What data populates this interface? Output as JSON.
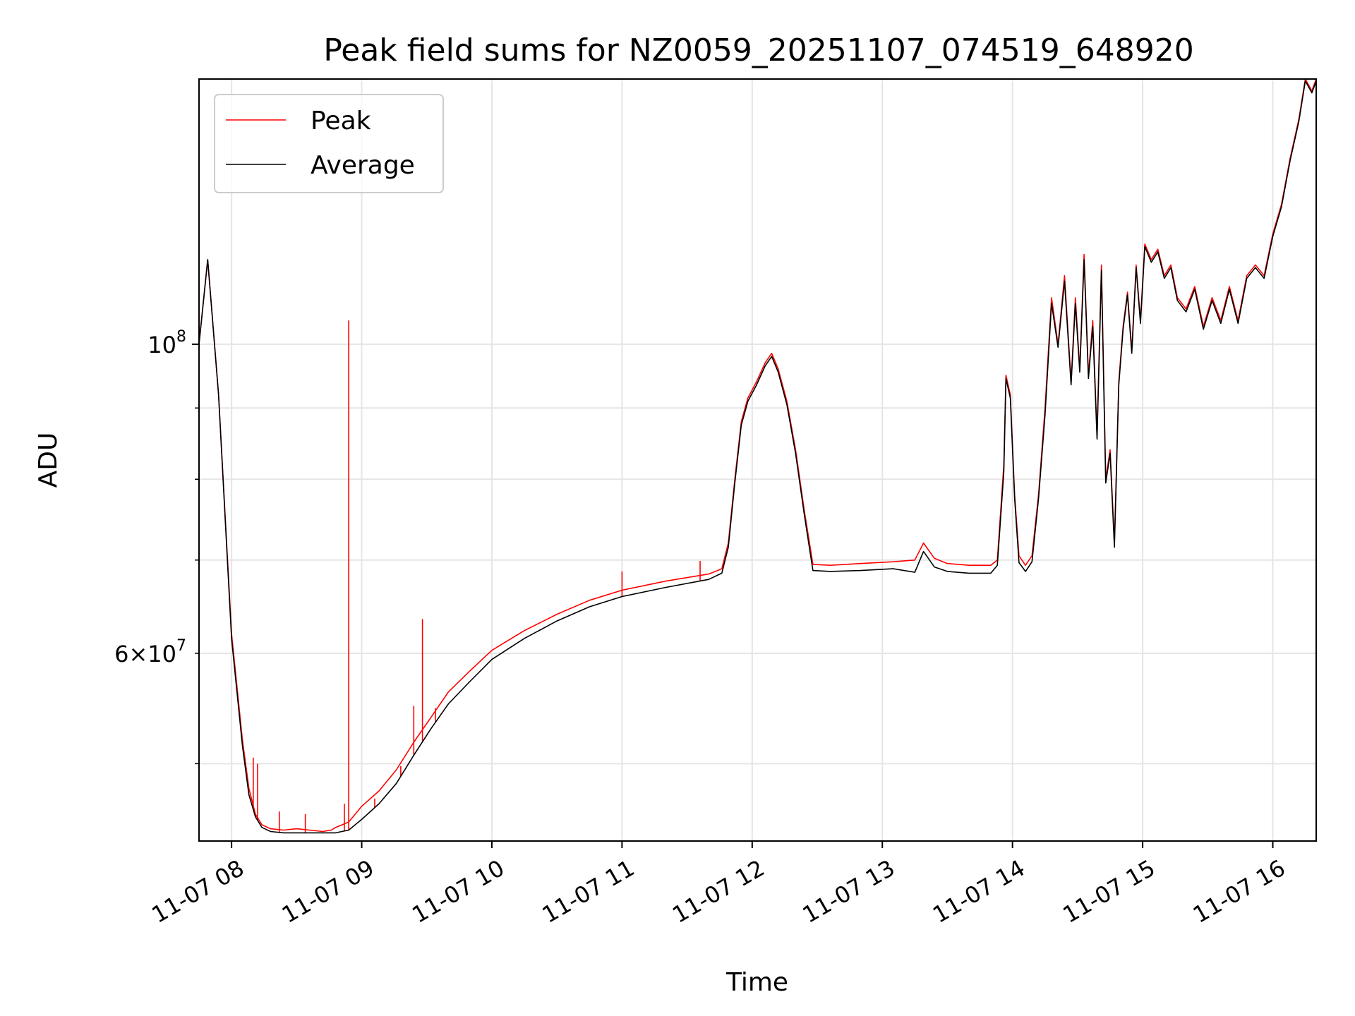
{
  "chart_data": {
    "type": "line",
    "title": "Peak field sums for NZ0059_20251107_074519_648920",
    "xlabel": "Time",
    "ylabel": "ADU",
    "xlim": [
      "2025-11-07 07:45",
      "2025-11-07 16:20"
    ],
    "ylim": [
      44000000,
      155000000
    ],
    "yscale": "log",
    "grid": true,
    "legend_position": "upper-left",
    "x_ticks": [
      {
        "value": "2025-11-07 08:00",
        "label": "11-07 08"
      },
      {
        "value": "2025-11-07 09:00",
        "label": "11-07 09"
      },
      {
        "value": "2025-11-07 10:00",
        "label": "11-07 10"
      },
      {
        "value": "2025-11-07 11:00",
        "label": "11-07 11"
      },
      {
        "value": "2025-11-07 12:00",
        "label": "11-07 12"
      },
      {
        "value": "2025-11-07 13:00",
        "label": "11-07 13"
      },
      {
        "value": "2025-11-07 14:00",
        "label": "11-07 14"
      },
      {
        "value": "2025-11-07 15:00",
        "label": "11-07 15"
      },
      {
        "value": "2025-11-07 16:00",
        "label": "11-07 16"
      }
    ],
    "y_major_ticks": [
      {
        "value": 100000000,
        "base": "10",
        "exp": "8"
      }
    ],
    "y_minor_ticks": [
      {
        "value": 60000000,
        "mant": "6",
        "base": "10",
        "exp": "7"
      },
      {
        "value": 50000000
      },
      {
        "value": 70000000
      },
      {
        "value": 80000000
      },
      {
        "value": 90000000
      }
    ],
    "series": [
      {
        "name": "Peak",
        "color": "#ff0000",
        "x": [
          "2025-11-07 07:45",
          "2025-11-07 07:49",
          "2025-11-07 07:54",
          "2025-11-07 08:00",
          "2025-11-07 08:05",
          "2025-11-07 08:08",
          "2025-11-07 08:11",
          "2025-11-07 08:14",
          "2025-11-07 08:18",
          "2025-11-07 08:24",
          "2025-11-07 08:30",
          "2025-11-07 08:36",
          "2025-11-07 08:42",
          "2025-11-07 08:46",
          "2025-11-07 08:48",
          "2025-11-07 08:54",
          "2025-11-07 09:00",
          "2025-11-07 09:08",
          "2025-11-07 09:16",
          "2025-11-07 09:24",
          "2025-11-07 09:32",
          "2025-11-07 09:40",
          "2025-11-07 09:50",
          "2025-11-07 10:00",
          "2025-11-07 10:15",
          "2025-11-07 10:30",
          "2025-11-07 10:45",
          "2025-11-07 11:00",
          "2025-11-07 11:20",
          "2025-11-07 11:40",
          "2025-11-07 11:46",
          "2025-11-07 11:49",
          "2025-11-07 11:52",
          "2025-11-07 11:55",
          "2025-11-07 11:58",
          "2025-11-07 12:02",
          "2025-11-07 12:06",
          "2025-11-07 12:09",
          "2025-11-07 12:12",
          "2025-11-07 12:16",
          "2025-11-07 12:20",
          "2025-11-07 12:24",
          "2025-11-07 12:28",
          "2025-11-07 12:36",
          "2025-11-07 12:50",
          "2025-11-07 13:05",
          "2025-11-07 13:15",
          "2025-11-07 13:19",
          "2025-11-07 13:24",
          "2025-11-07 13:30",
          "2025-11-07 13:40",
          "2025-11-07 13:50",
          "2025-11-07 13:53",
          "2025-11-07 13:56",
          "2025-11-07 13:57",
          "2025-11-07 13:59",
          "2025-11-07 14:01",
          "2025-11-07 14:03",
          "2025-11-07 14:06",
          "2025-11-07 14:09",
          "2025-11-07 14:12",
          "2025-11-07 14:15",
          "2025-11-07 14:18",
          "2025-11-07 14:21",
          "2025-11-07 14:24",
          "2025-11-07 14:27",
          "2025-11-07 14:29",
          "2025-11-07 14:31",
          "2025-11-07 14:33",
          "2025-11-07 14:35",
          "2025-11-07 14:37",
          "2025-11-07 14:39",
          "2025-11-07 14:41",
          "2025-11-07 14:43",
          "2025-11-07 14:45",
          "2025-11-07 14:47",
          "2025-11-07 14:49",
          "2025-11-07 14:51",
          "2025-11-07 14:53",
          "2025-11-07 14:55",
          "2025-11-07 14:57",
          "2025-11-07 14:59",
          "2025-11-07 15:01",
          "2025-11-07 15:04",
          "2025-11-07 15:07",
          "2025-11-07 15:10",
          "2025-11-07 15:13",
          "2025-11-07 15:16",
          "2025-11-07 15:20",
          "2025-11-07 15:24",
          "2025-11-07 15:28",
          "2025-11-07 15:32",
          "2025-11-07 15:36",
          "2025-11-07 15:40",
          "2025-11-07 15:44",
          "2025-11-07 15:48",
          "2025-11-07 15:52",
          "2025-11-07 15:56",
          "2025-11-07 16:00",
          "2025-11-07 16:04",
          "2025-11-07 16:08",
          "2025-11-07 16:12",
          "2025-11-07 16:15",
          "2025-11-07 16:18",
          "2025-11-07 16:20"
        ],
        "y": [
          100000000,
          115000000,
          92000000,
          62000000,
          52000000,
          48000000,
          46000000,
          45200000,
          44900000,
          44800000,
          44900000,
          44800000,
          44700000,
          44800000,
          45000000,
          45400000,
          46600000,
          47800000,
          49500000,
          51800000,
          54000000,
          56300000,
          58300000,
          60300000,
          62300000,
          64000000,
          65500000,
          66600000,
          67600000,
          68400000,
          69000000,
          72000000,
          80000000,
          88000000,
          91500000,
          94000000,
          97000000,
          98500000,
          96000000,
          91000000,
          84000000,
          76000000,
          69500000,
          69400000,
          69600000,
          69800000,
          70000000,
          72000000,
          70200000,
          69600000,
          69400000,
          69400000,
          70000000,
          82000000,
          95000000,
          92000000,
          78000000,
          70500000,
          69400000,
          70500000,
          78000000,
          90000000,
          108000000,
          100000000,
          112000000,
          94000000,
          108000000,
          96000000,
          116000000,
          95000000,
          104000000,
          86000000,
          114000000,
          80000000,
          84000000,
          72000000,
          94000000,
          103000000,
          109000000,
          99000000,
          114000000,
          104000000,
          118000000,
          115000000,
          117000000,
          112000000,
          114000000,
          108000000,
          106000000,
          110000000,
          103000000,
          108000000,
          104000000,
          110000000,
          104000000,
          112000000,
          114000000,
          112000000,
          120000000,
          126000000,
          136000000,
          145000000,
          155000000,
          152000000,
          155000000
        ]
      },
      {
        "name": "Average",
        "color": "#000000",
        "x": [
          "2025-11-07 07:45",
          "2025-11-07 07:49",
          "2025-11-07 07:54",
          "2025-11-07 08:00",
          "2025-11-07 08:05",
          "2025-11-07 08:08",
          "2025-11-07 08:11",
          "2025-11-07 08:14",
          "2025-11-07 08:18",
          "2025-11-07 08:24",
          "2025-11-07 08:30",
          "2025-11-07 08:36",
          "2025-11-07 08:42",
          "2025-11-07 08:46",
          "2025-11-07 08:48",
          "2025-11-07 08:54",
          "2025-11-07 09:00",
          "2025-11-07 09:08",
          "2025-11-07 09:16",
          "2025-11-07 09:24",
          "2025-11-07 09:32",
          "2025-11-07 09:40",
          "2025-11-07 09:50",
          "2025-11-07 10:00",
          "2025-11-07 10:15",
          "2025-11-07 10:30",
          "2025-11-07 10:45",
          "2025-11-07 11:00",
          "2025-11-07 11:20",
          "2025-11-07 11:40",
          "2025-11-07 11:46",
          "2025-11-07 11:49",
          "2025-11-07 11:52",
          "2025-11-07 11:55",
          "2025-11-07 11:58",
          "2025-11-07 12:02",
          "2025-11-07 12:06",
          "2025-11-07 12:09",
          "2025-11-07 12:12",
          "2025-11-07 12:16",
          "2025-11-07 12:20",
          "2025-11-07 12:24",
          "2025-11-07 12:28",
          "2025-11-07 12:36",
          "2025-11-07 12:50",
          "2025-11-07 13:05",
          "2025-11-07 13:15",
          "2025-11-07 13:19",
          "2025-11-07 13:24",
          "2025-11-07 13:30",
          "2025-11-07 13:40",
          "2025-11-07 13:50",
          "2025-11-07 13:53",
          "2025-11-07 13:56",
          "2025-11-07 13:57",
          "2025-11-07 13:59",
          "2025-11-07 14:01",
          "2025-11-07 14:03",
          "2025-11-07 14:06",
          "2025-11-07 14:09",
          "2025-11-07 14:12",
          "2025-11-07 14:15",
          "2025-11-07 14:18",
          "2025-11-07 14:21",
          "2025-11-07 14:24",
          "2025-11-07 14:27",
          "2025-11-07 14:29",
          "2025-11-07 14:31",
          "2025-11-07 14:33",
          "2025-11-07 14:35",
          "2025-11-07 14:37",
          "2025-11-07 14:39",
          "2025-11-07 14:41",
          "2025-11-07 14:43",
          "2025-11-07 14:45",
          "2025-11-07 14:47",
          "2025-11-07 14:49",
          "2025-11-07 14:51",
          "2025-11-07 14:53",
          "2025-11-07 14:55",
          "2025-11-07 14:57",
          "2025-11-07 14:59",
          "2025-11-07 15:01",
          "2025-11-07 15:04",
          "2025-11-07 15:07",
          "2025-11-07 15:10",
          "2025-11-07 15:13",
          "2025-11-07 15:16",
          "2025-11-07 15:20",
          "2025-11-07 15:24",
          "2025-11-07 15:28",
          "2025-11-07 15:32",
          "2025-11-07 15:36",
          "2025-11-07 15:40",
          "2025-11-07 15:44",
          "2025-11-07 15:48",
          "2025-11-07 15:52",
          "2025-11-07 15:56",
          "2025-11-07 16:00",
          "2025-11-07 16:04",
          "2025-11-07 16:08",
          "2025-11-07 16:12",
          "2025-11-07 16:15",
          "2025-11-07 16:18",
          "2025-11-07 16:20"
        ],
        "y": [
          100000000,
          115000000,
          92000000,
          61500000,
          51500000,
          47500000,
          45800000,
          45000000,
          44700000,
          44600000,
          44600000,
          44600000,
          44600000,
          44600000,
          44600000,
          44800000,
          45600000,
          46800000,
          48400000,
          50700000,
          53000000,
          55200000,
          57300000,
          59400000,
          61500000,
          63300000,
          64800000,
          65900000,
          66900000,
          67800000,
          68500000,
          71500000,
          79500000,
          87500000,
          91000000,
          93500000,
          96500000,
          98000000,
          95500000,
          90500000,
          83500000,
          75500000,
          68800000,
          68700000,
          68800000,
          69000000,
          68600000,
          71000000,
          69200000,
          68700000,
          68500000,
          68500000,
          69400000,
          81000000,
          94500000,
          91500000,
          77500000,
          69700000,
          68700000,
          69800000,
          77500000,
          89000000,
          107000000,
          99500000,
          111000000,
          93500000,
          107000000,
          95500000,
          115000000,
          94500000,
          103000000,
          85500000,
          113000000,
          79500000,
          83500000,
          71500000,
          93500000,
          102500000,
          108500000,
          98500000,
          113500000,
          103500000,
          117500000,
          114500000,
          116500000,
          111500000,
          113500000,
          107500000,
          105500000,
          109500000,
          102500000,
          107500000,
          103500000,
          109500000,
          103500000,
          111500000,
          113500000,
          111500000,
          119500000,
          125500000,
          135500000,
          144500000,
          154500000,
          151500000,
          154500000
        ]
      }
    ],
    "spikes": [
      {
        "x": "2025-11-07 08:10",
        "y": 50500000
      },
      {
        "x": "2025-11-07 08:12",
        "y": 50000000
      },
      {
        "x": "2025-11-07 08:22",
        "y": 46200000
      },
      {
        "x": "2025-11-07 08:34",
        "y": 46000000
      },
      {
        "x": "2025-11-07 08:52",
        "y": 46800000
      },
      {
        "x": "2025-11-07 08:54",
        "y": 104000000
      },
      {
        "x": "2025-11-07 09:06",
        "y": 47200000
      },
      {
        "x": "2025-11-07 09:18",
        "y": 49800000
      },
      {
        "x": "2025-11-07 09:24",
        "y": 55000000
      },
      {
        "x": "2025-11-07 09:28",
        "y": 63500000
      },
      {
        "x": "2025-11-07 09:34",
        "y": 54800000
      },
      {
        "x": "2025-11-07 11:00",
        "y": 68700000
      },
      {
        "x": "2025-11-07 11:36",
        "y": 69900000
      }
    ],
    "legend": [
      {
        "label": "Peak",
        "color": "#ff0000"
      },
      {
        "label": "Average",
        "color": "#000000"
      }
    ]
  }
}
